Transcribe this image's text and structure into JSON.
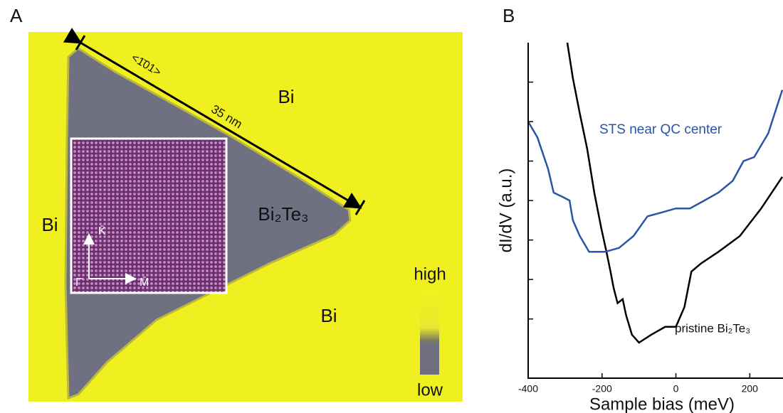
{
  "figure": {
    "panel_a": {
      "label": "A",
      "regions": [
        "Bi",
        "Bi",
        "Bi"
      ],
      "island": "Bi₂Te₃",
      "direction": "<1̄01>",
      "scale": "35 nm",
      "axes": [
        "K̄",
        "Γ̄",
        "M̄"
      ],
      "colorbar": [
        "high",
        "low"
      ]
    }
  },
  "chart_data": {
    "type": "line",
    "panel": "B",
    "xlabel": "Sample bias (meV)",
    "ylabel": "dI/dV (a.u.)",
    "xlim": [
      -400,
      290
    ],
    "xticks": [
      -400,
      -200,
      0,
      200
    ],
    "ylim": [
      -0.5,
      8
    ],
    "yticks": [
      1,
      2,
      3,
      4,
      5,
      6,
      7
    ],
    "series": [
      {
        "name": "pristine Bi₂Te₃",
        "color": "#000000",
        "x": [
          -294,
          -279,
          -260,
          -240,
          -221,
          -202,
          -188,
          -177,
          -169,
          -158,
          -144,
          -135,
          -119,
          -100,
          -67,
          -29,
          0,
          23,
          42,
          67,
          115,
          173,
          231,
          288
        ],
        "values": [
          8.0,
          7.1,
          6.2,
          5.3,
          4.2,
          3.3,
          2.7,
          2.2,
          1.8,
          1.4,
          1.5,
          1.1,
          0.6,
          0.4,
          0.6,
          0.8,
          0.8,
          1.3,
          2.2,
          2.4,
          2.7,
          3.1,
          3.8,
          4.6
        ]
      },
      {
        "name": "STS near QC center",
        "color": "#2a54a5",
        "x": [
          -400,
          -375,
          -346,
          -331,
          -308,
          -288,
          -279,
          -260,
          -235,
          -192,
          -154,
          -115,
          -77,
          -38,
          0,
          38,
          77,
          115,
          154,
          183,
          212,
          250,
          288
        ],
        "values": [
          6.0,
          5.6,
          4.8,
          4.2,
          4.1,
          4.0,
          3.5,
          3.1,
          2.7,
          2.7,
          2.8,
          3.1,
          3.6,
          3.7,
          3.8,
          3.8,
          4.0,
          4.2,
          4.5,
          5.0,
          5.1,
          5.7,
          6.8
        ]
      }
    ]
  }
}
